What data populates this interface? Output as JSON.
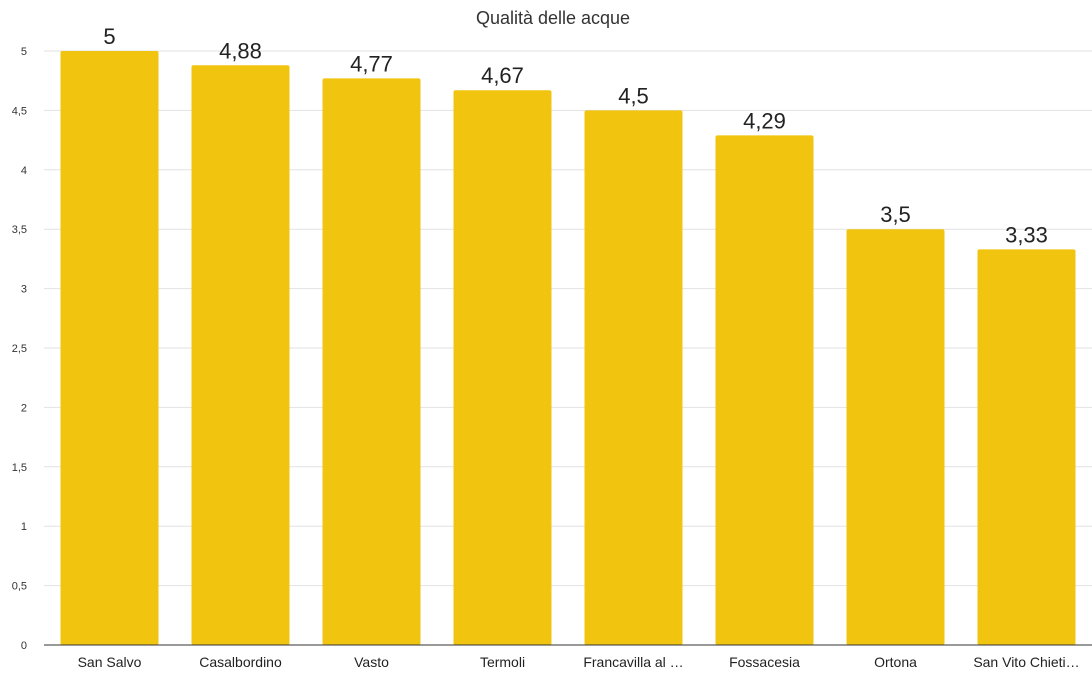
{
  "chart_data": {
    "type": "bar",
    "title": "Qualità delle acque",
    "xlabel": "",
    "ylabel": "",
    "categories": [
      "San Salvo",
      "Casalbordino",
      "Vasto",
      "Termoli",
      "Francavilla al …",
      "Fossacesia",
      "Ortona",
      "San Vito Chieti…"
    ],
    "values": [
      5,
      4.88,
      4.77,
      4.67,
      4.5,
      4.29,
      3.5,
      3.33
    ],
    "value_labels": [
      "5",
      "4,88",
      "4,77",
      "4,67",
      "4,5",
      "4,29",
      "3,5",
      "3,33"
    ],
    "ylim": [
      0,
      5
    ],
    "yticks": [
      0,
      0.5,
      1,
      1.5,
      2,
      2.5,
      3,
      3.5,
      4,
      4.5,
      5
    ],
    "ytick_labels": [
      "0",
      "0,5",
      "1",
      "1,5",
      "2",
      "2,5",
      "3",
      "3,5",
      "4",
      "4,5",
      "5"
    ],
    "grid": true,
    "legend": "none",
    "bar_color": "#f0c40f"
  }
}
